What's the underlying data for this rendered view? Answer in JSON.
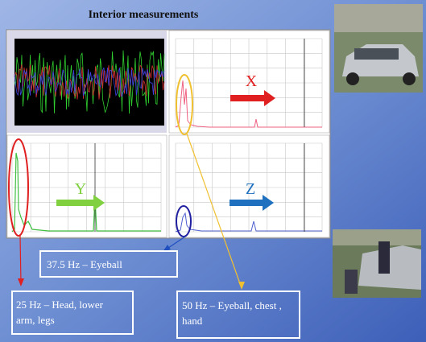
{
  "title": "Interior measurements",
  "axes": {
    "x": "X",
    "y": "Y",
    "z": "Z"
  },
  "callouts": {
    "eyeball": [
      "37.5 Hz – Eyeball"
    ],
    "head": [
      "25 Hz  – Head, lower",
      "arm, legs"
    ],
    "chest": [
      "50 Hz – Eyeball, chest ,",
      "hand"
    ]
  }
}
